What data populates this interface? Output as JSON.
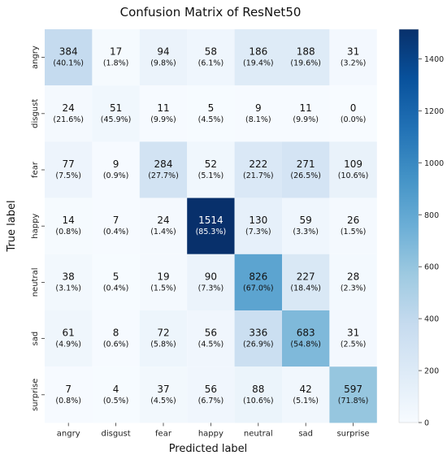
{
  "chart_data": {
    "type": "heatmap",
    "title": "Confusion Matrix of ResNet50",
    "xlabel": "Predicted label",
    "ylabel": "True label",
    "x_categories": [
      "angry",
      "disgust",
      "fear",
      "happy",
      "neutral",
      "sad",
      "surprise"
    ],
    "y_categories": [
      "angry",
      "disgust",
      "fear",
      "happy",
      "neutral",
      "sad",
      "surprise"
    ],
    "values": [
      [
        384,
        17,
        94,
        58,
        186,
        188,
        31
      ],
      [
        24,
        51,
        11,
        5,
        9,
        11,
        0
      ],
      [
        77,
        9,
        284,
        52,
        222,
        271,
        109
      ],
      [
        14,
        7,
        24,
        1514,
        130,
        59,
        26
      ],
      [
        38,
        5,
        19,
        90,
        826,
        227,
        28
      ],
      [
        61,
        8,
        72,
        56,
        336,
        683,
        31
      ],
      [
        7,
        4,
        37,
        56,
        88,
        42,
        597
      ]
    ],
    "percentages": [
      [
        "(40.1%)",
        "(1.8%)",
        "(9.8%)",
        "(6.1%)",
        "(19.4%)",
        "(19.6%)",
        "(3.2%)"
      ],
      [
        "(21.6%)",
        "(45.9%)",
        "(9.9%)",
        "(4.5%)",
        "(8.1%)",
        "(9.9%)",
        "(0.0%)"
      ],
      [
        "(7.5%)",
        "(0.9%)",
        "(27.7%)",
        "(5.1%)",
        "(21.7%)",
        "(26.5%)",
        "(10.6%)"
      ],
      [
        "(0.8%)",
        "(0.4%)",
        "(1.4%)",
        "(85.3%)",
        "(7.3%)",
        "(3.3%)",
        "(1.5%)"
      ],
      [
        "(3.1%)",
        "(0.4%)",
        "(1.5%)",
        "(7.3%)",
        "(67.0%)",
        "(18.4%)",
        "(2.3%)"
      ],
      [
        "(4.9%)",
        "(0.6%)",
        "(5.8%)",
        "(4.5%)",
        "(26.9%)",
        "(54.8%)",
        "(2.5%)"
      ],
      [
        "(0.8%)",
        "(0.5%)",
        "(4.5%)",
        "(6.7%)",
        "(10.6%)",
        "(5.1%)",
        "(71.8%)"
      ]
    ],
    "colorbar": {
      "min": 0,
      "max": 1514,
      "ticks": [
        0,
        200,
        400,
        600,
        800,
        1000,
        1200,
        1400
      ],
      "colormap": "Blues"
    }
  }
}
